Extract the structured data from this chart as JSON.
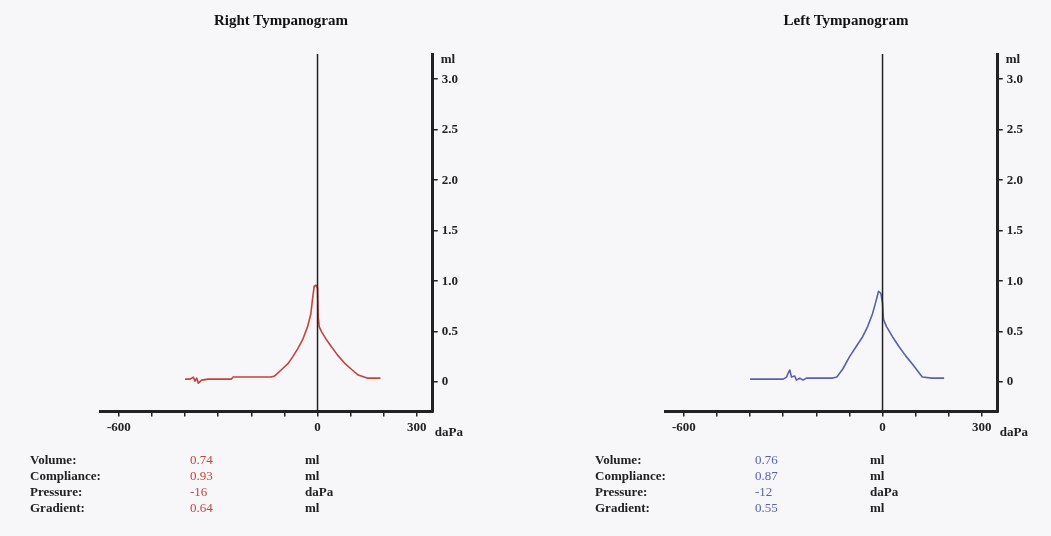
{
  "chart_data": [
    {
      "type": "line",
      "title": "Right Tympanogram",
      "xlabel": "daPa",
      "ylabel": "ml",
      "x": [
        -400,
        -385,
        -375,
        -370,
        -365,
        -360,
        -350,
        -330,
        -300,
        -260,
        -255,
        -200,
        -160,
        -140,
        -130,
        -110,
        -90,
        -75,
        -60,
        -45,
        -30,
        -20,
        -16,
        -10,
        -5,
        0,
        2,
        5,
        12,
        25,
        42,
        60,
        84,
        105,
        123,
        150,
        190
      ],
      "series": [
        {
          "color": "#c8423a",
          "values": [
            0.03,
            0.03,
            0.05,
            0.01,
            0.04,
            -0.01,
            0.02,
            0.03,
            0.03,
            0.03,
            0.05,
            0.05,
            0.05,
            0.05,
            0.06,
            0.12,
            0.18,
            0.25,
            0.33,
            0.42,
            0.55,
            0.68,
            0.8,
            0.95,
            0.96,
            0.93,
            0.65,
            0.55,
            0.5,
            0.43,
            0.35,
            0.27,
            0.18,
            0.12,
            0.07,
            0.04,
            0.04
          ]
        }
      ],
      "xlim": [
        -657,
        348
      ],
      "ylim": [
        -0.29,
        3.25
      ],
      "xticks": [
        -600,
        {
          "value": -500,
          "label": null
        },
        {
          "value": -400,
          "label": null
        },
        {
          "value": -300,
          "label": null
        },
        {
          "value": -200,
          "label": null
        },
        {
          "value": -100,
          "label": null
        },
        0,
        {
          "value": 100,
          "label": null
        },
        {
          "value": 200,
          "label": null
        },
        300
      ],
      "yticks": [
        0,
        0.5,
        {
          "value": 1,
          "label": "1.0"
        },
        1.5,
        {
          "value": 2,
          "label": "2.0"
        },
        2.5,
        {
          "value": 3,
          "label": "3.0"
        }
      ],
      "ref_lines": [
        {
          "axis": "x",
          "value": 0,
          "color": "#222222"
        }
      ],
      "annotations": [
        "Volume:",
        "0.74",
        "ml",
        "Compliance:",
        "0.93",
        "ml",
        "Pressure:",
        "-16",
        "daPa",
        "Gradient:",
        "0.64",
        "ml"
      ],
      "grid": false,
      "legend": false,
      "marker": "none",
      "line_style": "solid"
    },
    {
      "type": "line",
      "title": "Left Tympanogram",
      "xlabel": "daPa",
      "ylabel": "ml",
      "x": [
        -400,
        -300,
        -290,
        -285,
        -280,
        -275,
        -265,
        -260,
        -250,
        -240,
        -230,
        -200,
        -150,
        -138,
        -120,
        -100,
        -80,
        -60,
        -45,
        -30,
        -20,
        -12,
        -5,
        0,
        3,
        12,
        30,
        50,
        70,
        90,
        120,
        150,
        186
      ],
      "series": [
        {
          "color": "#5a5fb0",
          "values": [
            0.03,
            0.03,
            0.05,
            0.09,
            0.12,
            0.05,
            0.06,
            0.02,
            0.04,
            0.02,
            0.04,
            0.04,
            0.04,
            0.05,
            0.13,
            0.25,
            0.35,
            0.45,
            0.55,
            0.68,
            0.8,
            0.9,
            0.88,
            0.78,
            0.62,
            0.55,
            0.45,
            0.35,
            0.26,
            0.18,
            0.05,
            0.04,
            0.04
          ]
        }
      ],
      "xlim": [
        -657,
        348
      ],
      "ylim": [
        -0.29,
        3.25
      ],
      "xticks": [
        -600,
        {
          "value": -500,
          "label": null
        },
        {
          "value": -400,
          "label": null
        },
        {
          "value": -300,
          "label": null
        },
        {
          "value": -200,
          "label": null
        },
        {
          "value": -100,
          "label": null
        },
        0,
        {
          "value": 100,
          "label": null
        },
        {
          "value": 200,
          "label": null
        },
        300
      ],
      "yticks": [
        0,
        0.5,
        {
          "value": 1,
          "label": "1.0"
        },
        1.5,
        {
          "value": 2,
          "label": "2.0"
        },
        2.5,
        {
          "value": 3,
          "label": "3.0"
        }
      ],
      "ref_lines": [
        {
          "axis": "x",
          "value": 0,
          "color": "#222222"
        }
      ],
      "annotations": [
        "Volume:",
        "0.76",
        "ml",
        "Compliance:",
        "0.87",
        "ml",
        "Pressure:",
        "-12",
        "daPa",
        "Gradient:",
        "0.55",
        "ml"
      ],
      "grid": false,
      "legend": false,
      "marker": "none",
      "line_style": "solid"
    }
  ]
}
